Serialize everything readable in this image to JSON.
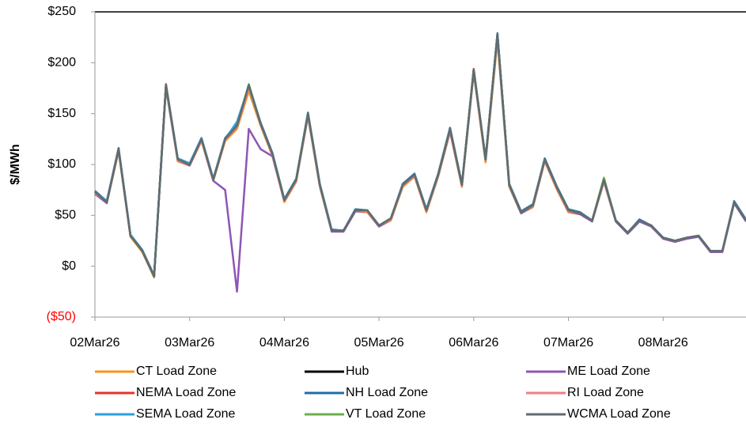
{
  "chart_data": {
    "type": "line",
    "y_label": "$/MWh",
    "categories": [
      "02Mar26",
      null,
      null,
      null,
      null,
      null,
      null,
      null,
      "03Mar26",
      null,
      null,
      null,
      null,
      null,
      null,
      null,
      "04Mar26",
      null,
      null,
      null,
      null,
      null,
      null,
      null,
      "05Mar26",
      null,
      null,
      null,
      null,
      null,
      null,
      null,
      "06Mar26",
      null,
      null,
      null,
      null,
      null,
      null,
      null,
      "07Mar26",
      null,
      null,
      null,
      null,
      null,
      null,
      null,
      "08Mar26",
      null,
      null,
      null,
      null,
      null,
      null,
      null
    ],
    "ylim": [
      -50,
      250
    ],
    "yticks": [
      {
        "value": -50,
        "label": "($50)"
      },
      {
        "value": 0,
        "label": "$0"
      },
      {
        "value": 50,
        "label": "$50"
      },
      {
        "value": 100,
        "label": "$100"
      },
      {
        "value": 150,
        "label": "$150"
      },
      {
        "value": 200,
        "label": "$200"
      },
      {
        "value": 250,
        "label": "$250"
      }
    ],
    "negative_tick_color": "#ff0000",
    "grid": false,
    "series": [
      {
        "name": "CT Load Zone",
        "color": "#f7941d",
        "values": [
          72,
          62,
          113,
          29,
          14,
          -11,
          175,
          103,
          99,
          123,
          84,
          123,
          135,
          172,
          138,
          108,
          63,
          83,
          147,
          78,
          34,
          34,
          54,
          53,
          39,
          45,
          78,
          88,
          53,
          88,
          132,
          78,
          190,
          102,
          222,
          78,
          52,
          58,
          103,
          76,
          53,
          51,
          44,
          83,
          44,
          32,
          44,
          39,
          27,
          24,
          27,
          29,
          14,
          14,
          62,
          44
        ]
      },
      {
        "name": "Hub",
        "color": "#000000",
        "values": [
          73,
          63,
          115,
          30,
          15,
          -10,
          178,
          105,
          100,
          125,
          85,
          125,
          138,
          178,
          140,
          110,
          65,
          85,
          150,
          80,
          35,
          35,
          55,
          55,
          40,
          47,
          80,
          90,
          55,
          90,
          135,
          80,
          193,
          105,
          228,
          80,
          53,
          60,
          105,
          78,
          55,
          52,
          45,
          85,
          45,
          33,
          45,
          40,
          28,
          25,
          28,
          30,
          15,
          15,
          63,
          45
        ]
      },
      {
        "name": "ME Load Zone",
        "color": "#8e55b5",
        "values": [
          71,
          62,
          114,
          30,
          15,
          -10,
          176,
          104,
          99,
          124,
          84,
          75,
          -25,
          135,
          115,
          108,
          64,
          84,
          148,
          79,
          34,
          34,
          54,
          54,
          39,
          46,
          79,
          89,
          54,
          89,
          133,
          79,
          191,
          104,
          226,
          79,
          52,
          59,
          104,
          77,
          54,
          51,
          44,
          84,
          44,
          32,
          44,
          39,
          27,
          24,
          27,
          29,
          14,
          14,
          62,
          44
        ]
      },
      {
        "name": "NEMA Load Zone",
        "color": "#e8312f",
        "values": [
          73,
          63,
          116,
          30,
          15,
          -10,
          179,
          105,
          100,
          125,
          85,
          125,
          138,
          177,
          140,
          110,
          65,
          85,
          150,
          80,
          35,
          35,
          55,
          55,
          40,
          47,
          80,
          90,
          55,
          90,
          136,
          80,
          194,
          105,
          228,
          80,
          53,
          60,
          105,
          78,
          55,
          52,
          45,
          85,
          45,
          33,
          45,
          40,
          28,
          25,
          28,
          30,
          15,
          15,
          63,
          45
        ]
      },
      {
        "name": "NH Load Zone",
        "color": "#1f6ea8",
        "values": [
          74,
          64,
          116,
          31,
          16,
          -9,
          178,
          106,
          101,
          126,
          86,
          126,
          140,
          178,
          141,
          111,
          66,
          86,
          151,
          81,
          36,
          35,
          56,
          55,
          40,
          47,
          81,
          91,
          56,
          91,
          136,
          81,
          193,
          106,
          229,
          81,
          54,
          61,
          106,
          79,
          56,
          53,
          45,
          86,
          45,
          33,
          46,
          40,
          28,
          25,
          28,
          30,
          15,
          15,
          64,
          46
        ]
      },
      {
        "name": "RI Load Zone",
        "color": "#f08080",
        "values": [
          72,
          63,
          114,
          30,
          15,
          -10,
          177,
          104,
          100,
          124,
          85,
          124,
          137,
          176,
          139,
          109,
          64,
          84,
          149,
          79,
          35,
          35,
          55,
          54,
          40,
          46,
          79,
          89,
          54,
          89,
          134,
          79,
          192,
          104,
          226,
          79,
          53,
          59,
          104,
          77,
          54,
          52,
          45,
          84,
          45,
          33,
          45,
          40,
          28,
          25,
          28,
          30,
          15,
          15,
          63,
          45
        ]
      },
      {
        "name": "SEMA Load Zone",
        "color": "#2aa1dc",
        "values": [
          73,
          64,
          115,
          31,
          15,
          -10,
          177,
          106,
          101,
          126,
          85,
          125,
          142,
          177,
          140,
          110,
          65,
          85,
          150,
          80,
          35,
          35,
          55,
          55,
          40,
          47,
          80,
          90,
          55,
          90,
          135,
          80,
          193,
          105,
          227,
          80,
          53,
          60,
          105,
          78,
          55,
          52,
          45,
          85,
          45,
          33,
          45,
          40,
          28,
          25,
          28,
          30,
          15,
          15,
          63,
          45
        ]
      },
      {
        "name": "VT Load Zone",
        "color": "#6ab04c",
        "values": [
          73,
          63,
          115,
          30,
          15,
          -10,
          178,
          105,
          100,
          125,
          85,
          125,
          138,
          179,
          140,
          110,
          65,
          85,
          150,
          80,
          35,
          35,
          55,
          55,
          40,
          47,
          80,
          90,
          55,
          90,
          135,
          80,
          193,
          105,
          228,
          80,
          53,
          60,
          105,
          78,
          55,
          52,
          45,
          87,
          45,
          33,
          45,
          40,
          28,
          25,
          28,
          30,
          15,
          15,
          63,
          45
        ]
      },
      {
        "name": "WCMA Load Zone",
        "color": "#5f6b73",
        "values": [
          73,
          63,
          115,
          30,
          15,
          -10,
          178,
          105,
          100,
          125,
          85,
          125,
          138,
          178,
          140,
          110,
          65,
          85,
          150,
          80,
          35,
          35,
          55,
          55,
          40,
          47,
          80,
          90,
          55,
          90,
          135,
          80,
          193,
          105,
          228,
          80,
          53,
          60,
          105,
          78,
          55,
          52,
          45,
          85,
          45,
          33,
          45,
          40,
          28,
          25,
          28,
          30,
          15,
          15,
          63,
          45
        ]
      }
    ]
  }
}
